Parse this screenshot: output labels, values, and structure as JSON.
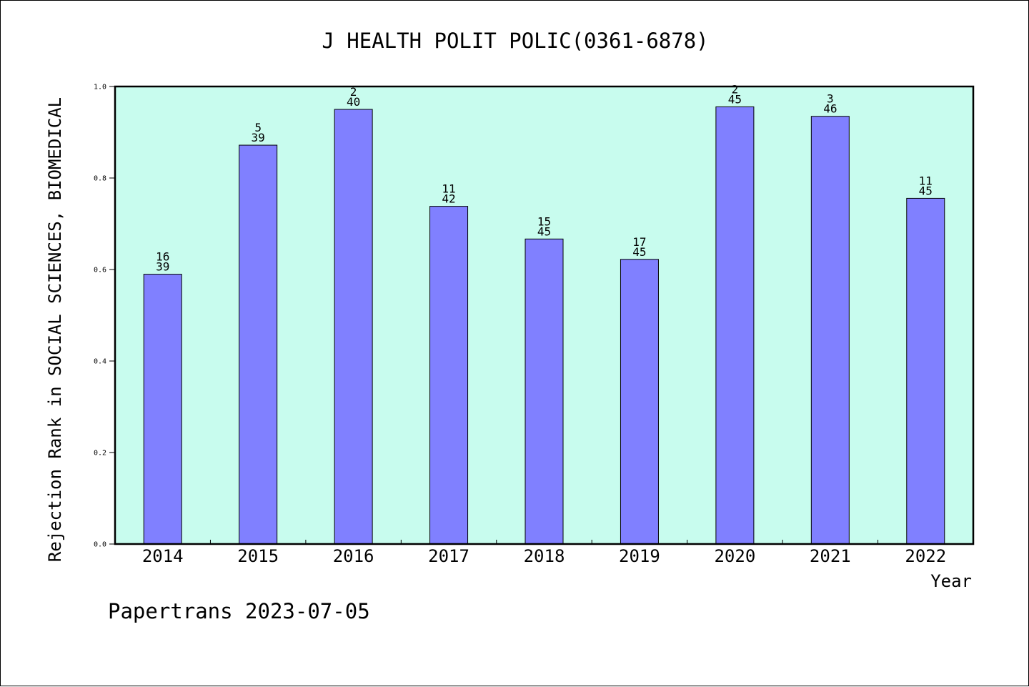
{
  "chart_data": {
    "type": "bar",
    "title": "J HEALTH POLIT POLIC(0361-6878)",
    "xlabel": "Year",
    "ylabel": "Rejection Rank in SOCIAL SCIENCES, BIOMEDICAL",
    "ylim": [
      0,
      1
    ],
    "yticks": [
      "0.0",
      "0.2",
      "0.4",
      "0.6",
      "0.8",
      "1.0"
    ],
    "categories": [
      "2014",
      "2015",
      "2016",
      "2017",
      "2018",
      "2019",
      "2020",
      "2021",
      "2022"
    ],
    "values": [
      0.5897,
      0.8718,
      0.95,
      0.7381,
      0.6667,
      0.6222,
      0.9556,
      0.9348,
      0.7556
    ],
    "rank_labels": [
      "16",
      "5",
      "2",
      "11",
      "15",
      "17",
      "2",
      "3",
      "11"
    ],
    "total_labels": [
      "39",
      "39",
      "40",
      "42",
      "45",
      "45",
      "45",
      "46",
      "45"
    ],
    "grid": false,
    "colors": {
      "plot_background": "#c8fcee",
      "bar_fill": "#8080ff",
      "bar_stroke": "#000000"
    }
  },
  "footer": "Papertrans 2023-07-05"
}
